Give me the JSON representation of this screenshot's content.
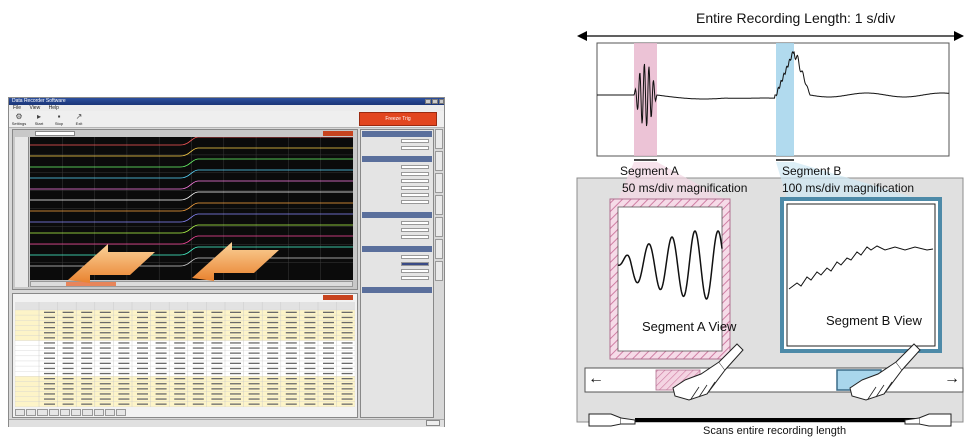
{
  "software_window": {
    "title": "Data Recorder Software",
    "menu": [
      "File",
      "View",
      "Help"
    ],
    "toolbar": [
      "Settings",
      "Start",
      "Stop",
      "Exit"
    ],
    "primary_button": "Freeze Trig"
  },
  "diagram": {
    "top_label": "Entire Recording Length: 1 s/div",
    "segment_a_label": "Segment A",
    "segment_a_mag": "50 ms/div magnification",
    "segment_b_label": "Segment B",
    "segment_b_mag": "100 ms/div magnification",
    "segment_a_view": "Segment A View",
    "segment_b_view": "Segment B View",
    "bottom_label": "Scans entire recording length",
    "left_arrow": "←",
    "right_arrow": "→"
  },
  "colors": {
    "segment_a": "#e9b8cf",
    "segment_b": "#a9d6ec",
    "scope_bg": "#0b0b0b",
    "highlight_arrow": "#f3a24d",
    "frame_gray": "#e0e0e0"
  }
}
